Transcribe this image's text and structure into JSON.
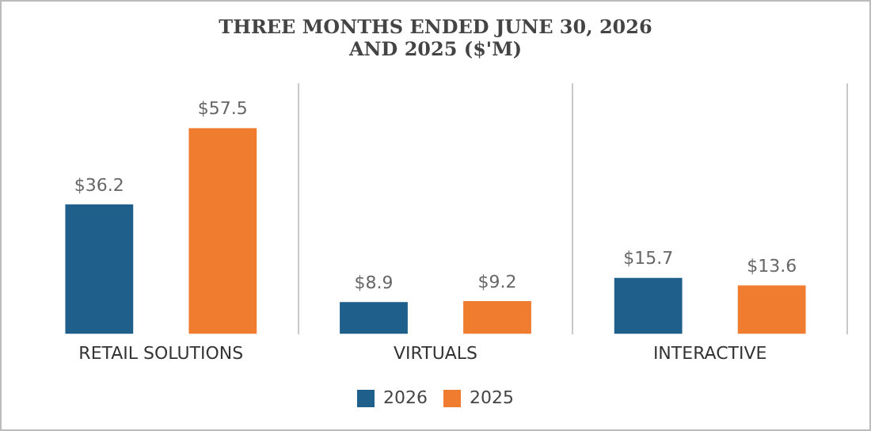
{
  "chart_data": {
    "type": "bar",
    "title": "THREE MONTHS ENDED JUNE 30, 2026\nAND 2025 ($'M)",
    "categories": [
      "RETAIL SOLUTIONS",
      "VIRTUALS",
      "INTERACTIVE"
    ],
    "series": [
      {
        "name": "2026",
        "color": "#1f5f8b",
        "values": [
          36.2,
          8.9,
          15.7
        ],
        "value_labels": [
          "$36.2",
          "$8.9",
          "$15.7"
        ]
      },
      {
        "name": "2025",
        "color": "#f07c30",
        "values": [
          57.5,
          9.2,
          13.6
        ],
        "value_labels": [
          "$57.5",
          "$9.2",
          "$13.6"
        ]
      }
    ],
    "grid": "x",
    "legend": "bottom"
  }
}
